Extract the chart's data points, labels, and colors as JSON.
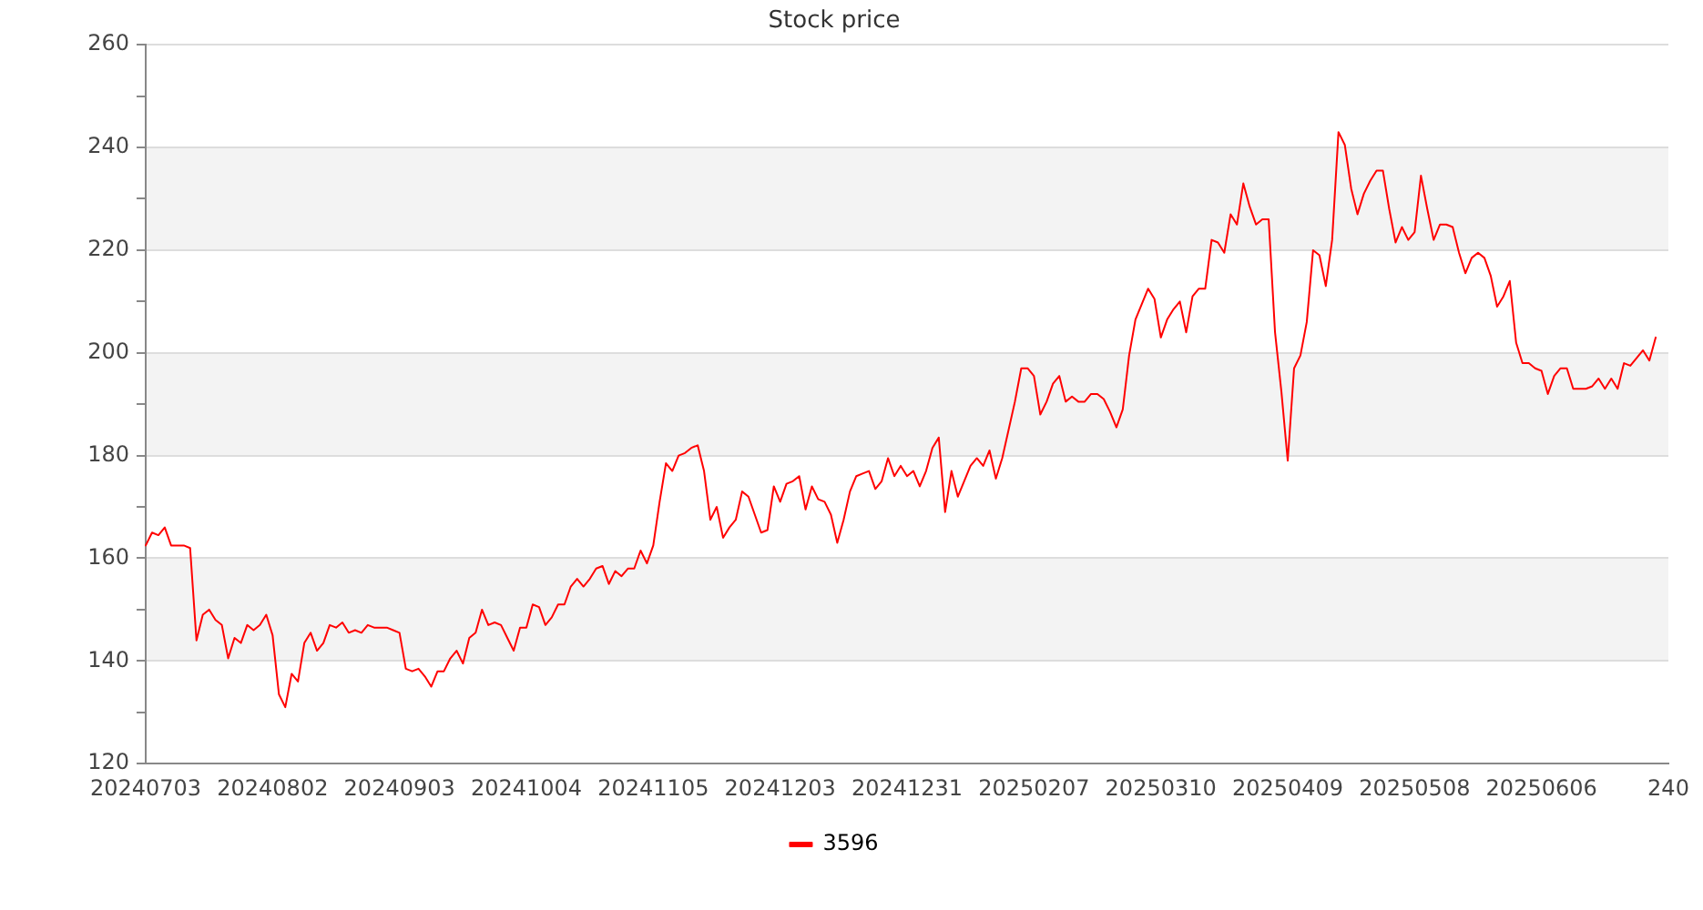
{
  "chart_data": {
    "type": "line",
    "title": "Stock price",
    "categories": [
      "20240703",
      null,
      null,
      null,
      null,
      null,
      null,
      null,
      null,
      null,
      null,
      null,
      null,
      null,
      null,
      null,
      null,
      null,
      null,
      null,
      "20240802",
      null,
      null,
      null,
      null,
      null,
      null,
      null,
      null,
      null,
      null,
      null,
      null,
      null,
      null,
      null,
      null,
      null,
      null,
      null,
      "20240903",
      null,
      null,
      null,
      null,
      null,
      null,
      null,
      null,
      null,
      null,
      null,
      null,
      null,
      null,
      null,
      null,
      null,
      null,
      null,
      "20241004",
      null,
      null,
      null,
      null,
      null,
      null,
      null,
      null,
      null,
      null,
      null,
      null,
      null,
      null,
      null,
      null,
      null,
      null,
      null,
      "20241105",
      null,
      null,
      null,
      null,
      null,
      null,
      null,
      null,
      null,
      null,
      null,
      null,
      null,
      null,
      null,
      null,
      null,
      null,
      null,
      "20241203",
      null,
      null,
      null,
      null,
      null,
      null,
      null,
      null,
      null,
      null,
      null,
      null,
      null,
      null,
      null,
      null,
      null,
      null,
      null,
      "20241231",
      null,
      null,
      null,
      null,
      null,
      null,
      null,
      null,
      null,
      null,
      null,
      null,
      null,
      null,
      null,
      null,
      null,
      null,
      null,
      "20250207",
      null,
      null,
      null,
      null,
      null,
      null,
      null,
      null,
      null,
      null,
      null,
      null,
      null,
      null,
      null,
      null,
      null,
      null,
      null,
      "20250310",
      null,
      null,
      null,
      null,
      null,
      null,
      null,
      null,
      null,
      null,
      null,
      null,
      null,
      null,
      null,
      null,
      null,
      null,
      null,
      "20250409",
      null,
      null,
      null,
      null,
      null,
      null,
      null,
      null,
      null,
      null,
      null,
      null,
      null,
      null,
      null,
      null,
      null,
      null,
      null,
      "20250508",
      null,
      null,
      null,
      null,
      null,
      null,
      null,
      null,
      null,
      null,
      null,
      null,
      null,
      null,
      null,
      null,
      null,
      null,
      null,
      "20250606",
      null,
      null,
      null,
      null,
      null,
      null,
      null,
      null,
      null,
      null,
      null,
      null,
      null,
      null,
      null,
      null,
      null,
      null,
      null,
      "240"
    ],
    "series": [
      {
        "name": "3596",
        "color": "#ff0000",
        "values": [
          162.5,
          165,
          164.5,
          166,
          162.5,
          162.5,
          162.5,
          162,
          144,
          149,
          150,
          148,
          147,
          140.5,
          144.5,
          143.5,
          147,
          146,
          147,
          149,
          145,
          133.5,
          131,
          137.5,
          136,
          143.5,
          145.5,
          142,
          143.5,
          147,
          146.5,
          147.5,
          145.5,
          146,
          145.5,
          147,
          146.5,
          146.5,
          146.5,
          146,
          145.5,
          138.5,
          138,
          138.5,
          137,
          135,
          138,
          138,
          140.5,
          142,
          139.5,
          144.5,
          145.5,
          150,
          147,
          147.5,
          147,
          144.5,
          142,
          146.5,
          146.5,
          151,
          150.5,
          147,
          148.5,
          151,
          151,
          154.5,
          156,
          154.5,
          156,
          158,
          158.5,
          155,
          157.5,
          156.5,
          158,
          158,
          161.5,
          159,
          162.5,
          171,
          178.5,
          177,
          180,
          180.5,
          181.5,
          182,
          177,
          167.5,
          170,
          164,
          166,
          167.5,
          173,
          172,
          168.5,
          165,
          165.5,
          174,
          171,
          174.5,
          175,
          176,
          169.5,
          174,
          171.5,
          171,
          168.5,
          163,
          167.5,
          173,
          176,
          176.5,
          177,
          173.5,
          175,
          179.5,
          176,
          178,
          176,
          177,
          174,
          177,
          181.5,
          183.5,
          169,
          177,
          172,
          175,
          178,
          179.5,
          178,
          181,
          175.5,
          179.5,
          185,
          190.5,
          197,
          197,
          195.5,
          188,
          190.5,
          194,
          195.5,
          190.5,
          191.5,
          190.5,
          190.5,
          192,
          192,
          191,
          188.5,
          185.5,
          189,
          199.5,
          206.5,
          209.5,
          212.5,
          210.5,
          203,
          206.5,
          208.5,
          210,
          204,
          211,
          212.5,
          212.5,
          222,
          221.5,
          219.5,
          227,
          225,
          233,
          228.5,
          225,
          226,
          226,
          204,
          192.5,
          179,
          197,
          199.5,
          206,
          220,
          219,
          213,
          222,
          243,
          240.5,
          232,
          227,
          231,
          233.5,
          235.5,
          235.5,
          228,
          221.5,
          224.5,
          222,
          223.5,
          234.5,
          228,
          222,
          225,
          225,
          224.5,
          219.5,
          215.5,
          218.5,
          219.5,
          218.5,
          215,
          209,
          211,
          214,
          202,
          198,
          198,
          197,
          196.5,
          192,
          195.5,
          197,
          197,
          193,
          193,
          193,
          193.5,
          195,
          193,
          195,
          193,
          198,
          197.5,
          199,
          200.5,
          198.5,
          203,
          null,
          null
        ]
      }
    ],
    "ylim": [
      120,
      260
    ],
    "yticks": [
      120,
      {
        "value": 130,
        "label": null
      },
      140,
      {
        "value": 150,
        "label": null
      },
      160,
      {
        "value": 170,
        "label": null
      },
      180,
      {
        "value": 190,
        "label": null
      },
      200,
      {
        "value": 210,
        "label": null
      },
      220,
      {
        "value": 230,
        "label": null
      },
      240,
      {
        "value": 250,
        "label": null
      },
      260
    ],
    "grid": "y",
    "legend": "bottom",
    "marker": "none",
    "line_style": "solid"
  }
}
